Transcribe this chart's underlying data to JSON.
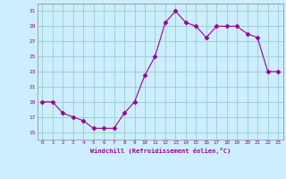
{
  "x": [
    0,
    1,
    2,
    3,
    4,
    5,
    6,
    7,
    8,
    9,
    10,
    11,
    12,
    13,
    14,
    15,
    16,
    17,
    18,
    19,
    20,
    21,
    22,
    23
  ],
  "y": [
    19,
    19,
    17.5,
    17,
    16.5,
    15.5,
    15.5,
    15.5,
    17.5,
    19,
    22.5,
    25,
    29.5,
    31,
    29.5,
    29,
    27.5,
    29,
    29,
    29,
    28,
    27.5,
    23,
    23
  ],
  "line_color": "#990099",
  "marker": "D",
  "marker_size": 2.5,
  "bg_color": "#cceeff",
  "grid_color": "#99cccc",
  "xlabel": "Windchill (Refroidissement éolien,°C)",
  "tick_color": "#990099",
  "ylim": [
    14,
    32
  ],
  "xlim": [
    -0.5,
    23.5
  ],
  "yticks": [
    15,
    17,
    19,
    21,
    23,
    25,
    27,
    29,
    31
  ],
  "xticks": [
    0,
    1,
    2,
    3,
    4,
    5,
    6,
    7,
    8,
    9,
    10,
    11,
    12,
    13,
    14,
    15,
    16,
    17,
    18,
    19,
    20,
    21,
    22,
    23
  ]
}
